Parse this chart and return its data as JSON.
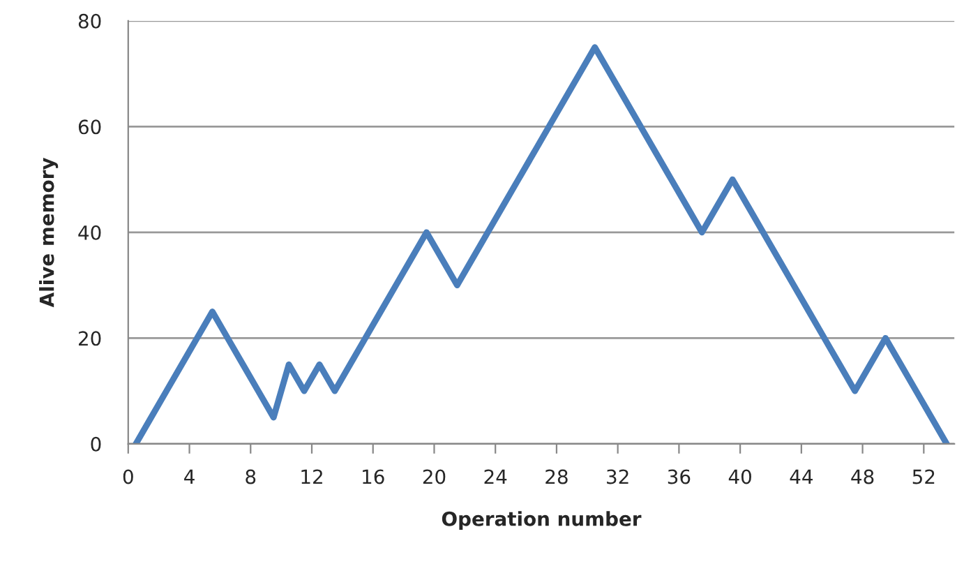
{
  "chart_data": {
    "type": "line",
    "xlabel": "Operation number",
    "ylabel": "Alive memory",
    "x": [
      0.5,
      1.5,
      2.5,
      3.5,
      4.5,
      5.5,
      6.5,
      7.5,
      8.5,
      9.5,
      10.5,
      11.5,
      12.5,
      13.5,
      14.5,
      15.5,
      16.5,
      17.5,
      18.5,
      19.5,
      20.5,
      21.5,
      22.5,
      23.5,
      24.5,
      25.5,
      26.5,
      27.5,
      28.5,
      29.5,
      30.5,
      31.5,
      32.5,
      33.5,
      34.5,
      35.5,
      36.5,
      37.5,
      38.5,
      39.5,
      40.5,
      41.5,
      42.5,
      43.5,
      44.5,
      45.5,
      46.5,
      47.5,
      48.5,
      49.5,
      50.5,
      51.5,
      52.5,
      53.5
    ],
    "series": [
      {
        "color": "#4a7ebb",
        "values": [
          0,
          5,
          10,
          15,
          20,
          25,
          20,
          15,
          10,
          5,
          15,
          10,
          15,
          10,
          15,
          20,
          25,
          30,
          35,
          40,
          35,
          30,
          35,
          40,
          45,
          50,
          55,
          60,
          65,
          70,
          75,
          70,
          65,
          60,
          55,
          50,
          45,
          40,
          45,
          50,
          45,
          40,
          35,
          30,
          25,
          20,
          15,
          10,
          15,
          20,
          15,
          10,
          5,
          0
        ]
      }
    ],
    "xlim": [
      0,
      54
    ],
    "xticks": [
      0,
      4,
      8,
      12,
      16,
      20,
      24,
      28,
      32,
      36,
      40,
      44,
      48,
      52
    ],
    "ylim": [
      0,
      80
    ],
    "yticks": [
      0,
      20,
      40,
      60,
      80
    ],
    "grid": "y",
    "marker": "none",
    "line_style": "solid"
  }
}
